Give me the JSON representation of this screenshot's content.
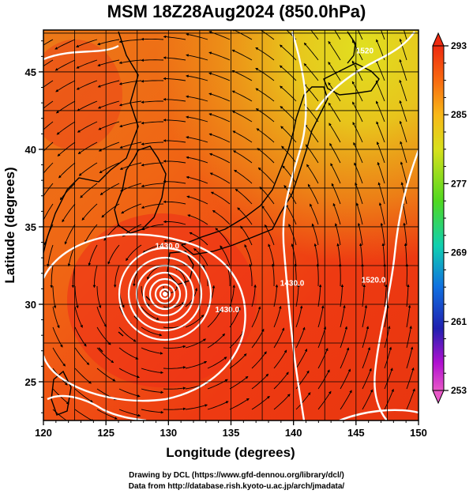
{
  "title": "MSM 18Z28Aug2024 (850.0hPa)",
  "footer": {
    "line1": "Drawing by DCL (https://www.gfd-dennou.org/library/dcl/)",
    "line2": "Data from http://database.rish.kyoto-u.ac.jp/arch/jmadata/"
  },
  "map": {
    "xlabel": "Longitude (degrees)",
    "ylabel": "Latitude  (degrees)",
    "lon_range": [
      120,
      150
    ],
    "lat_range": [
      22.5,
      47.7
    ],
    "lon_ticks": [
      {
        "value": 120,
        "label": "120"
      },
      {
        "value": 125,
        "label": "125"
      },
      {
        "value": 130,
        "label": "130"
      },
      {
        "value": 135,
        "label": "135"
      },
      {
        "value": 140,
        "label": "140"
      },
      {
        "value": 145,
        "label": "145"
      },
      {
        "value": 150,
        "label": "150"
      }
    ],
    "lat_ticks": [
      {
        "value": 25,
        "label": "25"
      },
      {
        "value": 30,
        "label": "30"
      },
      {
        "value": 35,
        "label": "35"
      },
      {
        "value": 40,
        "label": "40"
      },
      {
        "value": 45,
        "label": "45"
      }
    ],
    "contour_labels": [
      {
        "text": "1430.0",
        "lon": 129.9,
        "lat": 33.6
      },
      {
        "text": "1430.0",
        "lon": 134.7,
        "lat": 29.5
      },
      {
        "text": "1430.0",
        "lon": 139.9,
        "lat": 31.2
      },
      {
        "text": "1520.0",
        "lon": 146.4,
        "lat": 31.4
      },
      {
        "text": "1520",
        "lon": 145.7,
        "lat": 46.2
      }
    ],
    "typhoon_center": {
      "lon": 130.0,
      "lat": 31.2
    },
    "colors": {
      "warm": "#ee2a10",
      "mid": "#f86a10",
      "cool": "#ec9a10",
      "cold": "#d6c41c",
      "contour": "#ffffff",
      "coast": "#000000"
    }
  },
  "colorbar": {
    "ticks": [
      {
        "value": 293,
        "label": "293"
      },
      {
        "value": 285,
        "label": "285"
      },
      {
        "value": 277,
        "label": "277"
      },
      {
        "value": 269,
        "label": "269"
      },
      {
        "value": 261,
        "label": "261"
      },
      {
        "value": 253,
        "label": "253"
      }
    ],
    "range": [
      253,
      293
    ],
    "colors_top_to_bottom": [
      "#ee2a10",
      "#f86a10",
      "#f8b818",
      "#d8e01c",
      "#50d820",
      "#10d0b0",
      "#1070e0",
      "#2020b0",
      "#b010d0",
      "#e858c8"
    ]
  }
}
